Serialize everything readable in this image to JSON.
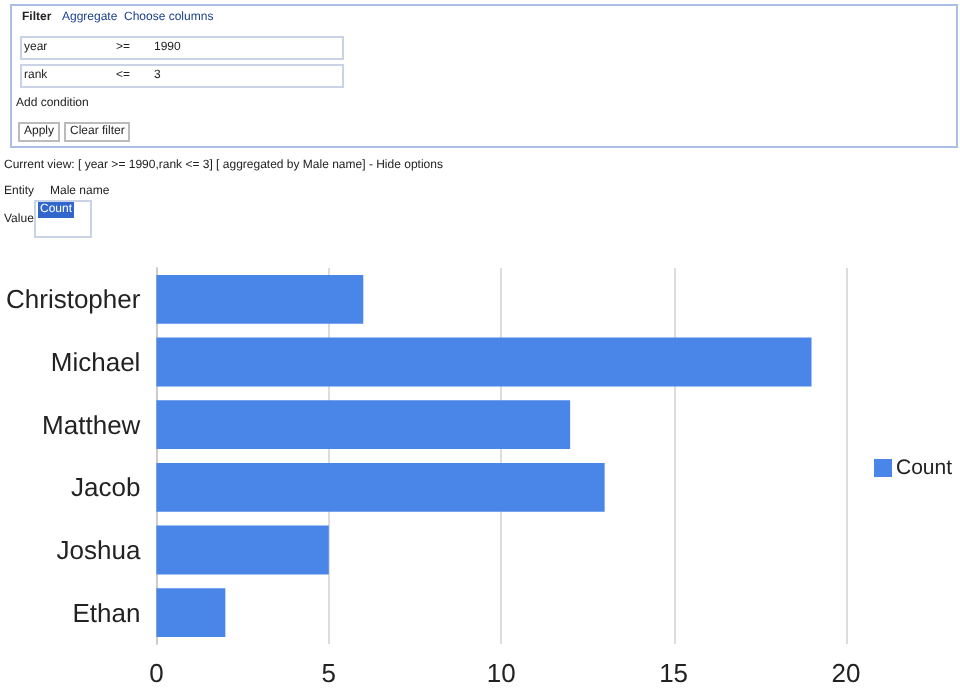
{
  "chart_data": {
    "type": "bar",
    "orientation": "horizontal",
    "categories": [
      "Christopher",
      "Michael",
      "Matthew",
      "Jacob",
      "Joshua",
      "Ethan"
    ],
    "series": [
      {
        "name": "Count",
        "color": "#4a86e8",
        "values": [
          6,
          19,
          12,
          13,
          5,
          2
        ]
      }
    ],
    "xlim": [
      0,
      20
    ],
    "xticks": [
      0,
      5,
      10,
      15,
      20
    ],
    "grid": "x",
    "legend": "right",
    "annotations": [
      "Filter",
      "Aggregate",
      "Choose columns",
      "year",
      ">=",
      "1990",
      "rank",
      "<=",
      "3",
      "Add condition",
      "Apply",
      "Clear filter",
      "Current view: [ year >= 1990,rank <= 3] [ aggregated by Male name] - Hide options",
      "Entity",
      "Male name",
      "Value",
      "Count"
    ]
  }
}
